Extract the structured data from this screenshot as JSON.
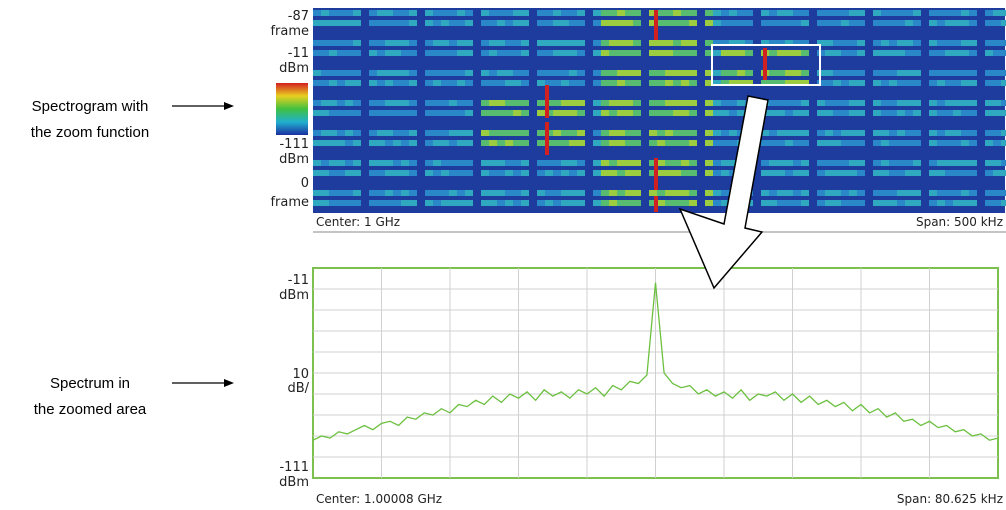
{
  "callouts": [
    {
      "lines": [
        "Spectrogram with",
        "the zoom function"
      ]
    },
    {
      "lines": [
        "Spectrum in",
        "the zoomed area"
      ]
    }
  ],
  "spectrogram": {
    "labels": [
      [
        "-87",
        "frame"
      ],
      [
        "-11",
        "dBm"
      ],
      [
        "-111",
        "dBm"
      ],
      [
        "0",
        "frame"
      ]
    ],
    "center": "Center: 1 GHz",
    "span": "Span: 500 kHz"
  },
  "spectrum": {
    "top": -11,
    "top_unit": "dBm",
    "scale": 10,
    "scale_unit": "dB/",
    "bottom": -111,
    "bottom_unit": "dBm",
    "center": "Center: 1.00008 GHz",
    "span": "Span: 80.625 kHz",
    "trace": [
      -93,
      -91,
      -92,
      -89,
      -90,
      -88,
      -86,
      -88,
      -85,
      -84,
      -86,
      -82,
      -83,
      -80,
      -81,
      -78,
      -80,
      -76,
      -77,
      -74,
      -76,
      -72,
      -75,
      -71,
      -73,
      -70,
      -74,
      -69,
      -72,
      -70,
      -73,
      -69,
      -71,
      -68,
      -72,
      -67,
      -69,
      -65,
      -66,
      -62,
      -18,
      -61,
      -66,
      -68,
      -67,
      -71,
      -69,
      -72,
      -70,
      -73,
      -69,
      -74,
      -71,
      -72,
      -70,
      -74,
      -71,
      -75,
      -72,
      -76,
      -74,
      -77,
      -75,
      -79,
      -76,
      -80,
      -78,
      -82,
      -80,
      -84,
      -83,
      -86,
      -84,
      -87,
      -86,
      -89,
      -88,
      -91,
      -90,
      -93,
      -92
    ]
  }
}
